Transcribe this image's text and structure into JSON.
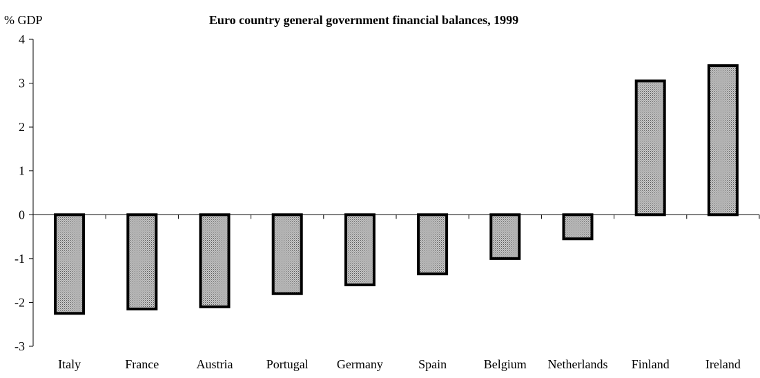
{
  "chart_data": {
    "type": "bar",
    "title": "Euro country general government financial balances, 1999",
    "ylabel": "% GDP",
    "xlabel": "",
    "categories": [
      "Italy",
      "France",
      "Austria",
      "Portugal",
      "Germany",
      "Spain",
      "Belgium",
      "Netherlands",
      "Finland",
      "Ireland"
    ],
    "values": [
      -2.25,
      -2.15,
      -2.1,
      -1.8,
      -1.6,
      -1.35,
      -1.0,
      -0.55,
      3.05,
      3.4
    ],
    "ylim": [
      -3,
      4
    ],
    "yticks": [
      4,
      3,
      2,
      1,
      0,
      -1,
      -2,
      -3
    ],
    "grid": false,
    "legend": "none",
    "colors": {
      "bar_fill": "#a8a8a8",
      "bar_outline": "#000000",
      "axis": "#000000"
    }
  }
}
